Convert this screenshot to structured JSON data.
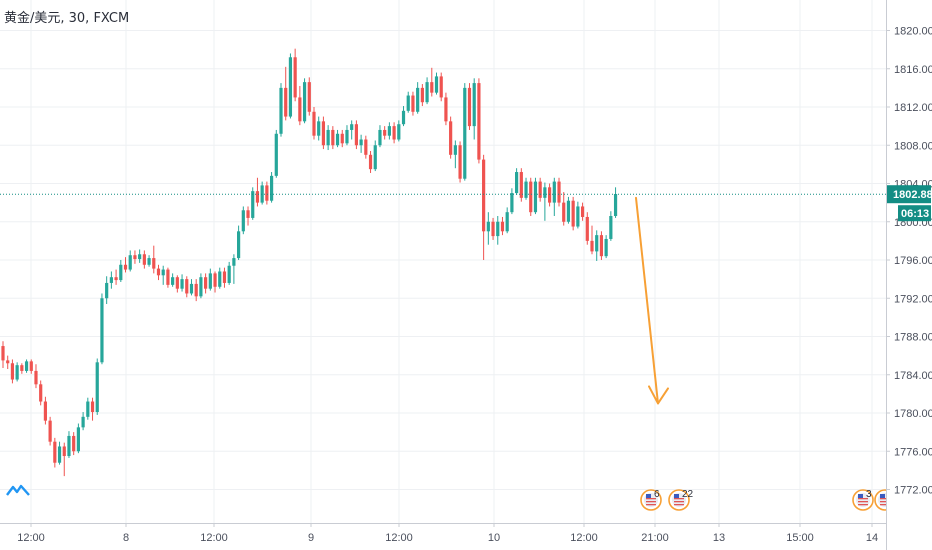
{
  "header": {
    "ticker": "黄金/美元, 30, FXCM"
  },
  "colors": {
    "up": "#26a69a",
    "down": "#ef5350",
    "grid": "#eef0f3",
    "price_line": "#138d84",
    "arrow": "#f7a035",
    "axis_border": "#c9ccd3"
  },
  "price_tag": {
    "price": "1802.88",
    "countdown": "06:13"
  },
  "events": [
    {
      "time": "21:00",
      "count": "6"
    },
    {
      "time": "21:00",
      "count": "22"
    },
    {
      "time": "14",
      "count": "3"
    },
    {
      "time": "14",
      "count": ""
    }
  ],
  "annotation": {
    "type": "arrow",
    "from": {
      "x": "10 12:00",
      "y": 1802.5
    },
    "to": {
      "x": "10 21:00",
      "y": 1781.0
    }
  },
  "chart_data": {
    "type": "candlestick",
    "title": "黄金/美元, 30, FXCM",
    "ylim": [
      1770,
      1822
    ],
    "y_ticks": [
      "1772.00",
      "1776.00",
      "1780.00",
      "1784.00",
      "1788.00",
      "1792.00",
      "1796.00",
      "1800.00",
      "1804.00",
      "1808.00",
      "1812.00",
      "1816.00",
      "1820.00"
    ],
    "x_ticks": [
      "12:00",
      "8",
      "12:00",
      "9",
      "12:00",
      "10",
      "12:00",
      "21:00",
      "13",
      "15:00",
      "14"
    ],
    "last_price": 1802.88,
    "candles": [
      [
        1787.0,
        1787.5,
        1784.7,
        1785.5
      ],
      [
        1785.5,
        1786.0,
        1784.6,
        1785.2
      ],
      [
        1785.2,
        1785.6,
        1783.1,
        1783.5
      ],
      [
        1783.5,
        1785.3,
        1783.3,
        1785.0
      ],
      [
        1785.0,
        1785.2,
        1784.1,
        1784.4
      ],
      [
        1784.4,
        1785.6,
        1784.2,
        1785.4
      ],
      [
        1785.4,
        1785.6,
        1784.1,
        1784.4
      ],
      [
        1784.4,
        1785.1,
        1782.6,
        1783.0
      ],
      [
        1783.0,
        1783.4,
        1780.8,
        1781.2
      ],
      [
        1781.2,
        1781.7,
        1778.8,
        1779.2
      ],
      [
        1779.2,
        1779.6,
        1776.6,
        1777.0
      ],
      [
        1777.0,
        1777.4,
        1774.3,
        1774.8
      ],
      [
        1774.8,
        1777.0,
        1774.6,
        1776.5
      ],
      [
        1776.5,
        1776.9,
        1773.4,
        1775.5
      ],
      [
        1775.5,
        1778.1,
        1775.3,
        1777.6
      ],
      [
        1777.6,
        1778.0,
        1775.6,
        1776.0
      ],
      [
        1776.0,
        1778.9,
        1775.8,
        1778.5
      ],
      [
        1778.5,
        1780.1,
        1778.2,
        1779.6
      ],
      [
        1779.6,
        1781.6,
        1779.3,
        1781.2
      ],
      [
        1781.2,
        1781.6,
        1779.2,
        1780.1
      ],
      [
        1780.1,
        1785.7,
        1779.8,
        1785.3
      ],
      [
        1785.3,
        1792.5,
        1785.1,
        1792.0
      ],
      [
        1792.0,
        1794.3,
        1791.4,
        1793.6
      ],
      [
        1793.6,
        1794.8,
        1793.0,
        1794.2
      ],
      [
        1794.2,
        1795.0,
        1793.4,
        1793.9
      ],
      [
        1793.9,
        1796.0,
        1793.7,
        1795.5
      ],
      [
        1795.5,
        1796.3,
        1794.7,
        1795.0
      ],
      [
        1795.0,
        1797.0,
        1794.8,
        1796.5
      ],
      [
        1796.5,
        1797.0,
        1795.6,
        1796.1
      ],
      [
        1796.1,
        1797.1,
        1795.7,
        1796.6
      ],
      [
        1796.6,
        1797.0,
        1795.1,
        1795.5
      ],
      [
        1795.5,
        1796.5,
        1795.3,
        1796.2
      ],
      [
        1796.2,
        1797.5,
        1794.6,
        1795.1
      ],
      [
        1795.1,
        1795.5,
        1793.9,
        1794.4
      ],
      [
        1794.4,
        1795.4,
        1793.4,
        1795.0
      ],
      [
        1795.0,
        1795.2,
        1793.1,
        1793.4
      ],
      [
        1793.4,
        1794.6,
        1793.2,
        1794.2
      ],
      [
        1794.2,
        1794.4,
        1792.6,
        1793.0
      ],
      [
        1793.0,
        1794.5,
        1792.7,
        1794.0
      ],
      [
        1794.0,
        1794.3,
        1792.1,
        1792.5
      ],
      [
        1792.5,
        1794.0,
        1792.3,
        1793.5
      ],
      [
        1793.5,
        1794.0,
        1791.7,
        1792.2
      ],
      [
        1792.2,
        1794.6,
        1792.0,
        1794.2
      ],
      [
        1794.2,
        1794.6,
        1792.5,
        1793.0
      ],
      [
        1793.0,
        1795.1,
        1792.8,
        1794.6
      ],
      [
        1794.6,
        1794.8,
        1792.6,
        1793.2
      ],
      [
        1793.2,
        1795.2,
        1793.0,
        1794.8
      ],
      [
        1794.8,
        1795.2,
        1793.1,
        1793.6
      ],
      [
        1793.6,
        1795.8,
        1793.4,
        1795.4
      ],
      [
        1795.4,
        1796.6,
        1793.5,
        1796.2
      ],
      [
        1796.2,
        1799.6,
        1796.0,
        1799.0
      ],
      [
        1799.0,
        1801.6,
        1798.7,
        1801.2
      ],
      [
        1801.2,
        1801.6,
        1799.6,
        1800.4
      ],
      [
        1800.4,
        1803.6,
        1800.2,
        1803.2
      ],
      [
        1803.2,
        1804.6,
        1801.6,
        1802.0
      ],
      [
        1802.0,
        1804.2,
        1801.8,
        1803.8
      ],
      [
        1803.8,
        1804.2,
        1801.8,
        1802.2
      ],
      [
        1802.2,
        1805.2,
        1802.0,
        1804.8
      ],
      [
        1804.8,
        1809.6,
        1804.6,
        1809.2
      ],
      [
        1809.2,
        1814.5,
        1808.9,
        1814.0
      ],
      [
        1814.0,
        1816.2,
        1810.6,
        1811.0
      ],
      [
        1811.0,
        1817.6,
        1810.8,
        1817.2
      ],
      [
        1817.2,
        1818.1,
        1812.6,
        1813.0
      ],
      [
        1813.0,
        1814.2,
        1810.1,
        1810.5
      ],
      [
        1810.5,
        1815.0,
        1810.3,
        1814.6
      ],
      [
        1814.6,
        1815.1,
        1811.1,
        1811.5
      ],
      [
        1811.5,
        1812.0,
        1808.6,
        1809.0
      ],
      [
        1809.0,
        1811.0,
        1808.5,
        1810.5
      ],
      [
        1810.5,
        1811.0,
        1807.6,
        1808.0
      ],
      [
        1808.0,
        1810.1,
        1807.5,
        1809.6
      ],
      [
        1809.6,
        1810.0,
        1807.6,
        1808.0
      ],
      [
        1808.0,
        1809.6,
        1807.8,
        1809.2
      ],
      [
        1809.2,
        1809.6,
        1807.8,
        1808.2
      ],
      [
        1808.2,
        1810.1,
        1808.0,
        1809.6
      ],
      [
        1809.6,
        1810.6,
        1808.6,
        1810.2
      ],
      [
        1810.2,
        1810.6,
        1807.6,
        1808.0
      ],
      [
        1808.0,
        1809.1,
        1807.2,
        1808.6
      ],
      [
        1808.6,
        1809.0,
        1806.6,
        1807.0
      ],
      [
        1807.0,
        1807.4,
        1805.1,
        1805.5
      ],
      [
        1805.5,
        1808.5,
        1805.3,
        1808.0
      ],
      [
        1808.0,
        1810.1,
        1807.8,
        1809.6
      ],
      [
        1809.6,
        1810.0,
        1808.6,
        1809.0
      ],
      [
        1809.0,
        1810.4,
        1808.6,
        1810.0
      ],
      [
        1810.0,
        1810.4,
        1808.2,
        1808.6
      ],
      [
        1808.6,
        1810.6,
        1808.4,
        1810.2
      ],
      [
        1810.2,
        1812.1,
        1810.0,
        1811.6
      ],
      [
        1811.6,
        1813.6,
        1811.4,
        1813.2
      ],
      [
        1813.2,
        1813.6,
        1811.1,
        1811.5
      ],
      [
        1811.5,
        1814.6,
        1811.3,
        1814.0
      ],
      [
        1814.0,
        1814.4,
        1812.1,
        1812.5
      ],
      [
        1812.5,
        1815.1,
        1812.3,
        1814.6
      ],
      [
        1814.6,
        1816.1,
        1813.1,
        1813.5
      ],
      [
        1813.5,
        1815.6,
        1813.3,
        1815.2
      ],
      [
        1815.2,
        1815.6,
        1812.6,
        1813.0
      ],
      [
        1813.0,
        1813.5,
        1810.1,
        1810.5
      ],
      [
        1810.5,
        1811.0,
        1806.6,
        1807.0
      ],
      [
        1807.0,
        1808.5,
        1805.6,
        1808.0
      ],
      [
        1808.0,
        1808.4,
        1804.1,
        1804.5
      ],
      [
        1804.5,
        1814.5,
        1804.3,
        1814.0
      ],
      [
        1814.0,
        1814.5,
        1809.6,
        1810.0
      ],
      [
        1810.0,
        1815.0,
        1808.6,
        1814.5
      ],
      [
        1814.5,
        1815.0,
        1806.1,
        1806.5
      ],
      [
        1806.5,
        1807.0,
        1796.0,
        1799.0
      ],
      [
        1799.0,
        1801.0,
        1797.6,
        1800.0
      ],
      [
        1800.0,
        1800.4,
        1798.1,
        1798.5
      ],
      [
        1798.5,
        1800.6,
        1797.6,
        1800.0
      ],
      [
        1800.0,
        1800.5,
        1798.6,
        1799.0
      ],
      [
        1799.0,
        1801.5,
        1798.8,
        1801.0
      ],
      [
        1801.0,
        1803.5,
        1800.8,
        1803.0
      ],
      [
        1803.0,
        1805.6,
        1802.8,
        1805.2
      ],
      [
        1805.2,
        1805.6,
        1802.1,
        1802.5
      ],
      [
        1802.5,
        1804.6,
        1802.3,
        1804.2
      ],
      [
        1804.2,
        1804.6,
        1800.6,
        1801.0
      ],
      [
        1801.0,
        1804.6,
        1800.8,
        1804.2
      ],
      [
        1804.2,
        1804.6,
        1802.1,
        1802.5
      ],
      [
        1802.5,
        1804.1,
        1800.1,
        1803.6
      ],
      [
        1803.6,
        1804.0,
        1801.6,
        1802.0
      ],
      [
        1802.0,
        1804.6,
        1800.6,
        1804.2
      ],
      [
        1804.2,
        1804.6,
        1801.6,
        1802.0
      ],
      [
        1802.0,
        1803.1,
        1799.6,
        1800.0
      ],
      [
        1800.0,
        1802.6,
        1799.8,
        1802.2
      ],
      [
        1802.2,
        1802.6,
        1799.1,
        1799.5
      ],
      [
        1799.5,
        1802.1,
        1799.3,
        1801.6
      ],
      [
        1801.6,
        1802.0,
        1800.1,
        1800.5
      ],
      [
        1800.5,
        1801.0,
        1797.6,
        1798.0
      ],
      [
        1798.0,
        1799.6,
        1796.6,
        1796.9
      ],
      [
        1796.9,
        1799.1,
        1795.9,
        1798.6
      ],
      [
        1798.6,
        1799.0,
        1796.0,
        1796.4
      ],
      [
        1796.4,
        1798.6,
        1796.2,
        1798.2
      ],
      [
        1798.2,
        1801.1,
        1798.0,
        1800.6
      ],
      [
        1800.6,
        1803.6,
        1800.4,
        1802.9
      ]
    ]
  }
}
